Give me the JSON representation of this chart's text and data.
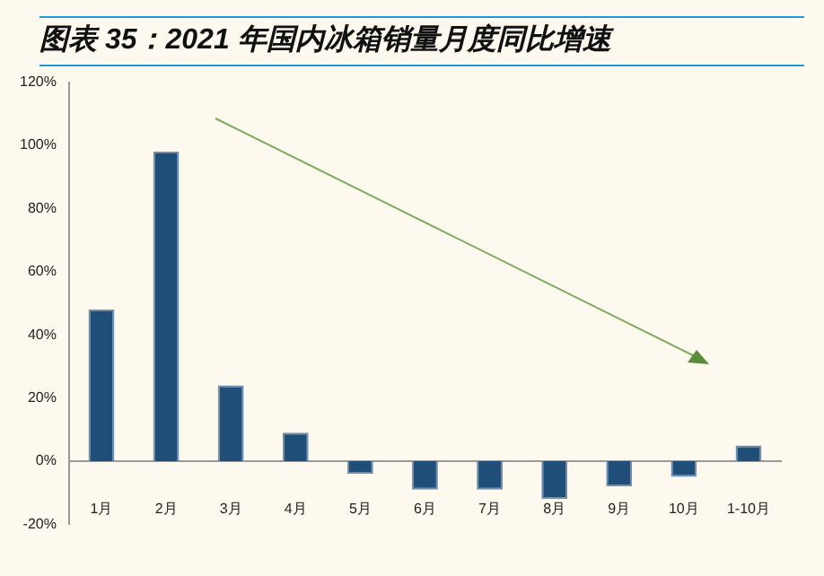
{
  "chart_data": {
    "type": "bar",
    "title": "图表 35：2021 年国内冰箱销量月度同比增速",
    "categories": [
      "1月",
      "2月",
      "3月",
      "4月",
      "5月",
      "6月",
      "7月",
      "8月",
      "9月",
      "10月",
      "1-10月"
    ],
    "series": [
      {
        "color": "#1f4e79",
        "values": [
          48,
          98,
          24,
          9,
          -4,
          -9,
          -9,
          -12,
          -8,
          -5,
          5
        ]
      }
    ],
    "ylim": [
      -20,
      120
    ],
    "yticks": [
      {
        "value": -20,
        "label": "-20%"
      },
      {
        "value": 0,
        "label": "0%"
      },
      {
        "value": 20,
        "label": "20%"
      },
      {
        "value": 40,
        "label": "40%"
      },
      {
        "value": 60,
        "label": "60%"
      },
      {
        "value": 80,
        "label": "80%"
      },
      {
        "value": 100,
        "label": "100%"
      },
      {
        "value": 120,
        "label": "120%"
      }
    ],
    "legend": false
  }
}
